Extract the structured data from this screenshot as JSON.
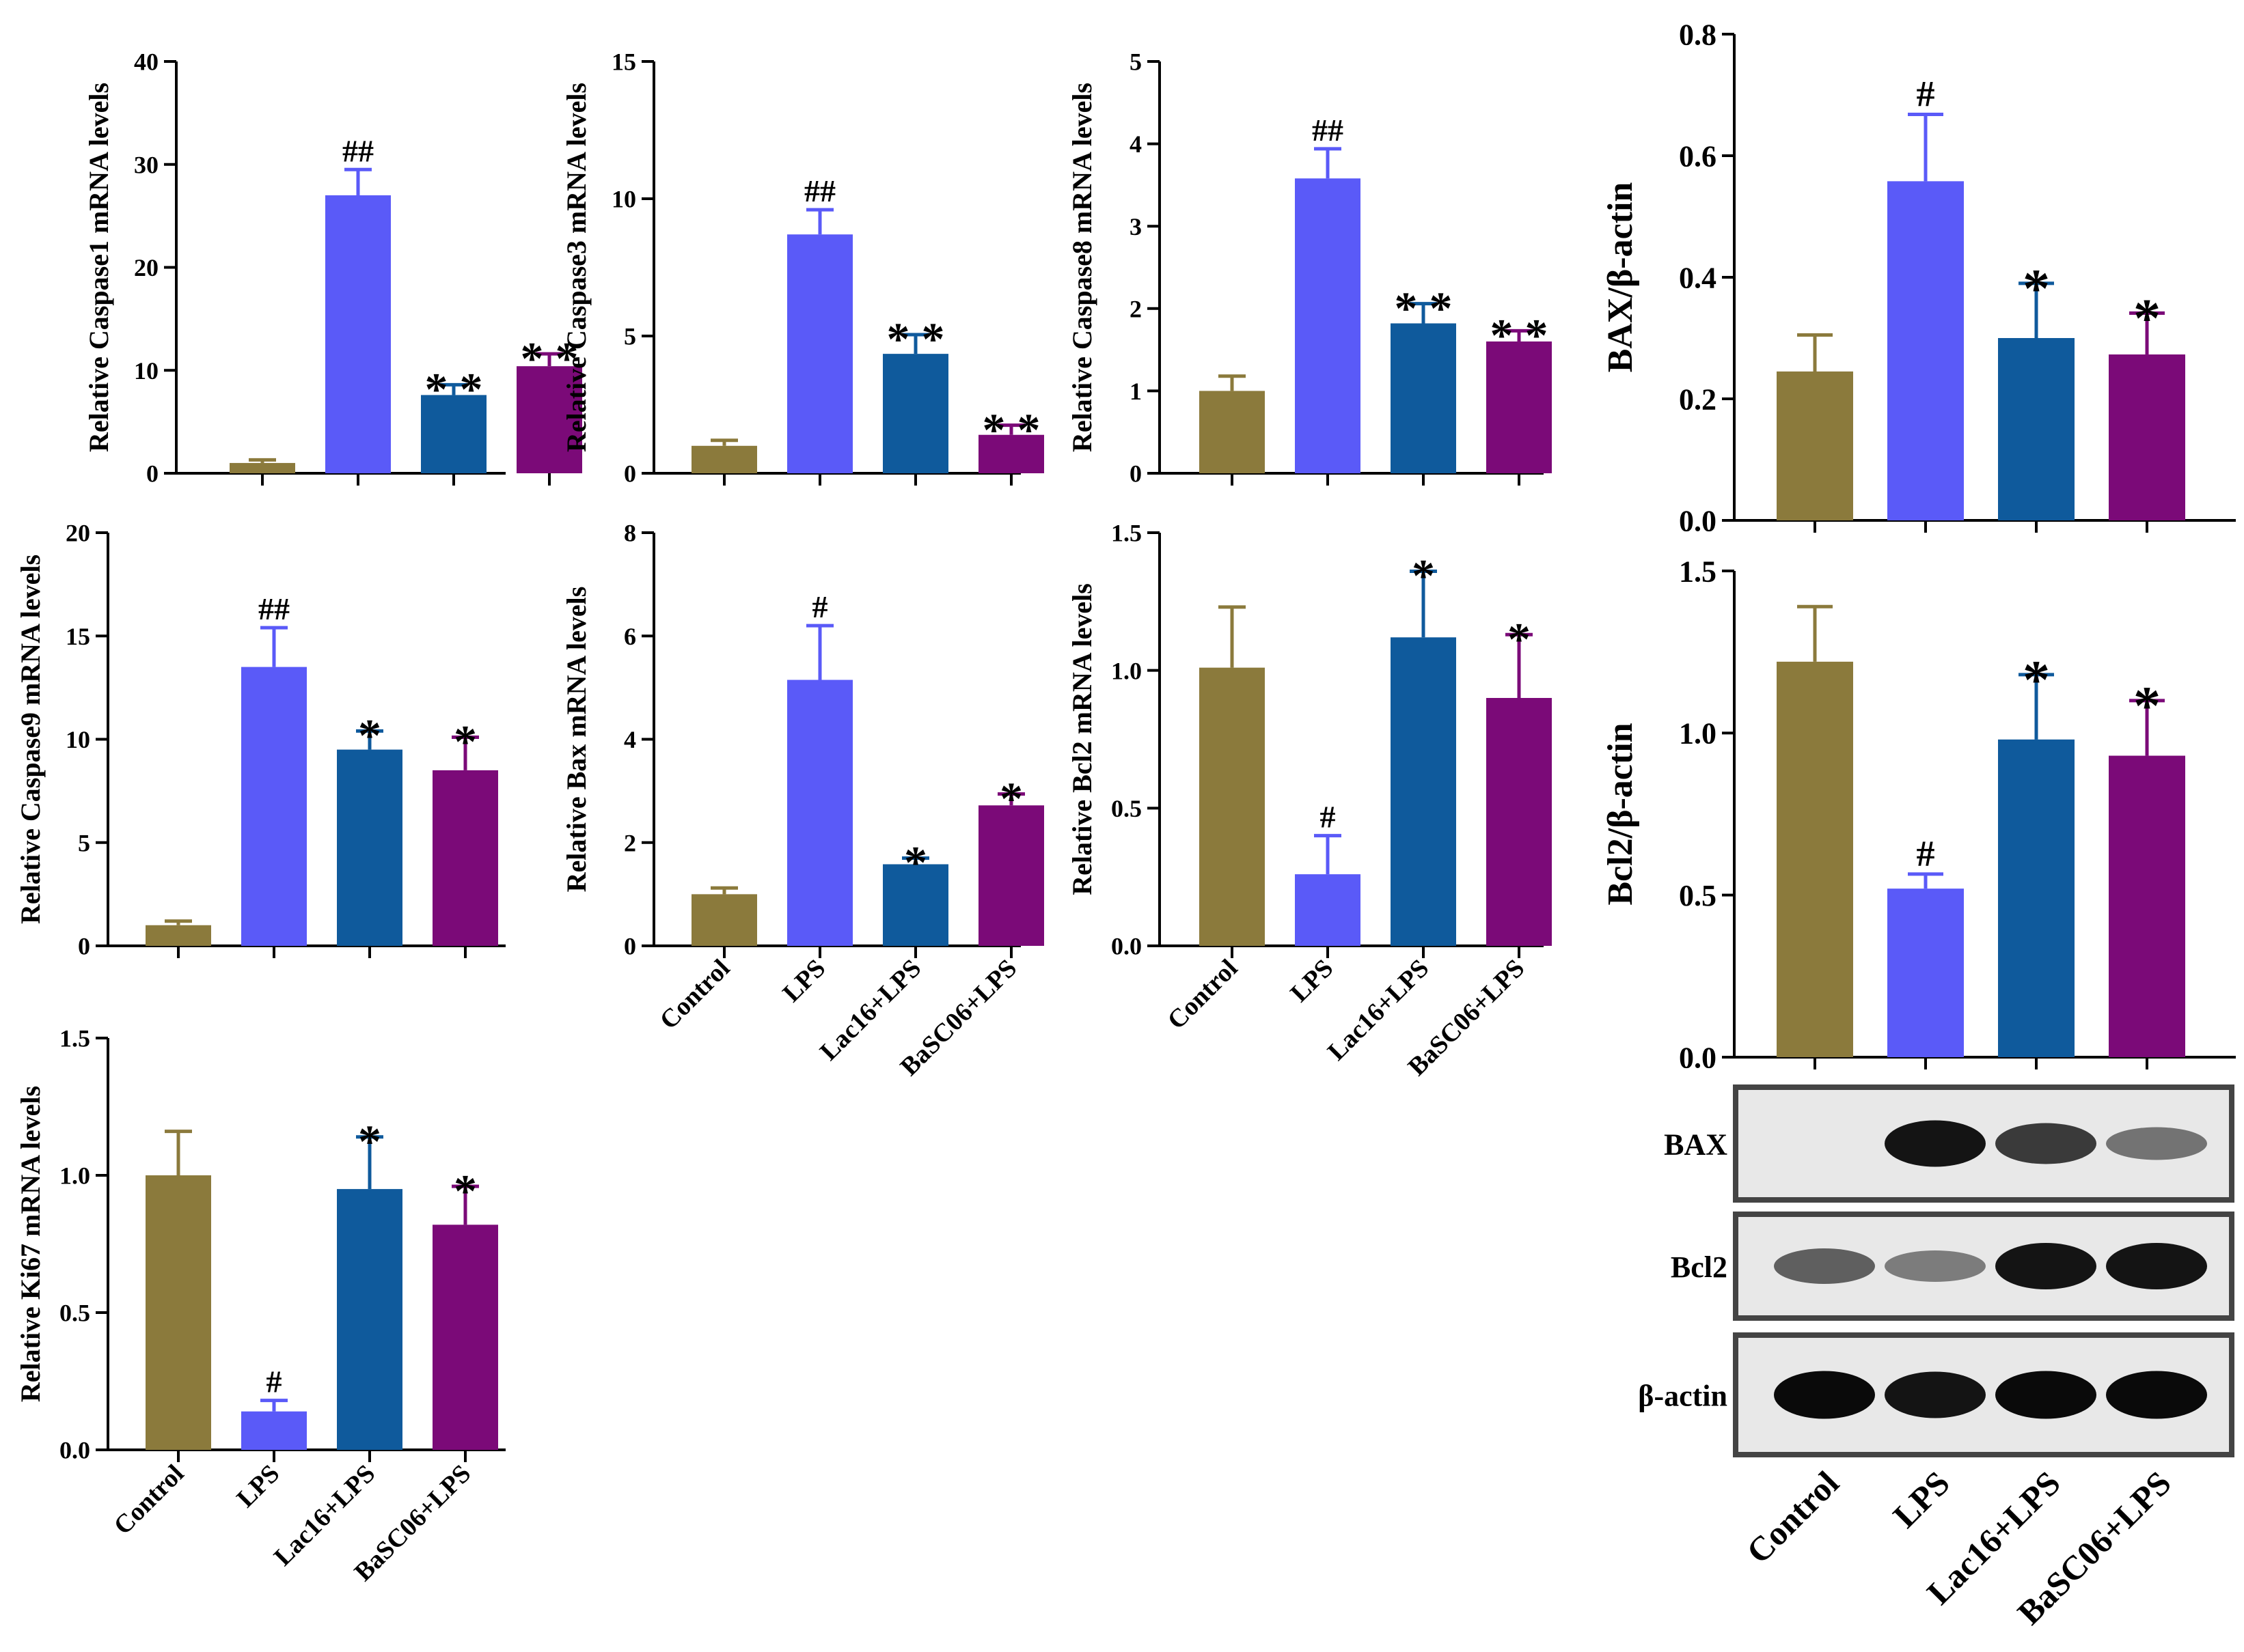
{
  "categories": [
    "Control",
    "LPS",
    "Lac16+LPS",
    "BaSC06+LPS"
  ],
  "colors": {
    "control": "#8B7A3C",
    "lps": "#5A5AF8",
    "lac16": "#0F5A9C",
    "basc06": "#7B0A78",
    "axis": "#000000",
    "blot_border": "#444444"
  },
  "chart_data": [
    {
      "id": "caspase1",
      "type": "bar",
      "ylabel": "Relative Caspase1 mRNA levels",
      "ylim": [
        0,
        40
      ],
      "ticks": [
        0,
        10,
        20,
        30,
        40
      ],
      "values": [
        1.0,
        27.0,
        7.6,
        10.4
      ],
      "errors": [
        0.3,
        2.5,
        1.0,
        1.2
      ],
      "annotations": [
        "",
        "##",
        "**",
        "**"
      ],
      "show_xlabels": false
    },
    {
      "id": "caspase3",
      "type": "bar",
      "ylabel": "Relative Caspase3 mRNA levels",
      "ylim": [
        0,
        15
      ],
      "ticks": [
        0,
        5,
        10,
        15
      ],
      "values": [
        1.0,
        8.7,
        4.35,
        1.4
      ],
      "errors": [
        0.2,
        0.9,
        0.7,
        0.35
      ],
      "annotations": [
        "",
        "##",
        "**",
        "**"
      ],
      "show_xlabels": false
    },
    {
      "id": "caspase8",
      "type": "bar",
      "ylabel": "Relative Caspase8 mRNA levels",
      "ylim": [
        0,
        5
      ],
      "ticks": [
        0,
        1,
        2,
        3,
        4,
        5
      ],
      "values": [
        1.0,
        3.58,
        1.82,
        1.6
      ],
      "errors": [
        0.18,
        0.36,
        0.24,
        0.13
      ],
      "annotations": [
        "",
        "##",
        "**",
        "**"
      ],
      "show_xlabels": false
    },
    {
      "id": "caspase9",
      "type": "bar",
      "ylabel": "Relative Caspase9 mRNA levels",
      "ylim": [
        0,
        20
      ],
      "ticks": [
        0,
        5,
        10,
        15,
        20
      ],
      "values": [
        1.0,
        13.5,
        9.5,
        8.5
      ],
      "errors": [
        0.2,
        1.9,
        0.9,
        1.6
      ],
      "annotations": [
        "",
        "##",
        "*",
        "*"
      ],
      "show_xlabels": false
    },
    {
      "id": "bax",
      "type": "bar",
      "ylabel": "Relative Bax mRNA levels",
      "ylim": [
        0,
        8
      ],
      "ticks": [
        0,
        2,
        4,
        6,
        8
      ],
      "values": [
        1.0,
        5.15,
        1.58,
        2.72
      ],
      "errors": [
        0.12,
        1.05,
        0.12,
        0.22
      ],
      "annotations": [
        "",
        "#",
        "*",
        "*"
      ],
      "show_xlabels": true
    },
    {
      "id": "bcl2",
      "type": "bar",
      "ylabel": "Relative Bcl2 mRNA levels",
      "ylim": [
        0,
        1.5
      ],
      "ticks": [
        "0.0",
        "0.5",
        "1.0",
        "1.5"
      ],
      "values": [
        1.01,
        0.26,
        1.12,
        0.9
      ],
      "errors": [
        0.22,
        0.14,
        0.24,
        0.23
      ],
      "annotations": [
        "",
        "#",
        "*",
        "*"
      ],
      "show_xlabels": true
    },
    {
      "id": "ki67",
      "type": "bar",
      "ylabel": "Relative Ki67 mRNA levels",
      "ylim": [
        0,
        1.5
      ],
      "ticks": [
        "0.0",
        "0.5",
        "1.0",
        "1.5"
      ],
      "values": [
        1.0,
        0.14,
        0.95,
        0.82
      ],
      "errors": [
        0.16,
        0.04,
        0.19,
        0.14
      ],
      "annotations": [
        "",
        "#",
        "*",
        "*"
      ],
      "show_xlabels": true
    },
    {
      "id": "bax_protein",
      "type": "bar",
      "ylabel": "BAX/β-actin",
      "ylim": [
        0,
        0.8
      ],
      "ticks": [
        "0.0",
        "0.2",
        "0.4",
        "0.6",
        "0.8"
      ],
      "values": [
        0.245,
        0.558,
        0.3,
        0.273
      ],
      "errors": [
        0.06,
        0.11,
        0.09,
        0.068
      ],
      "annotations": [
        "",
        "#",
        "*",
        "*"
      ],
      "show_xlabels": false
    },
    {
      "id": "bcl2_protein",
      "type": "bar",
      "ylabel": "Bcl2/β-actin",
      "ylim": [
        0,
        1.5
      ],
      "ticks": [
        "0.0",
        "0.5",
        "1.0",
        "1.5"
      ],
      "values": [
        1.22,
        0.52,
        0.98,
        0.93
      ],
      "errors": [
        0.17,
        0.045,
        0.2,
        0.17
      ],
      "annotations": [
        "",
        "#",
        "*",
        "*"
      ],
      "show_xlabels": false
    }
  ],
  "western_blot": {
    "rows": [
      {
        "label": "BAX",
        "intensities": [
          0.03,
          0.95,
          0.75,
          0.45
        ]
      },
      {
        "label": "Bcl2",
        "intensities": [
          0.55,
          0.4,
          0.95,
          0.95
        ]
      },
      {
        "label": "β-actin",
        "intensities": [
          1.0,
          0.95,
          1.0,
          1.0
        ]
      }
    ]
  }
}
